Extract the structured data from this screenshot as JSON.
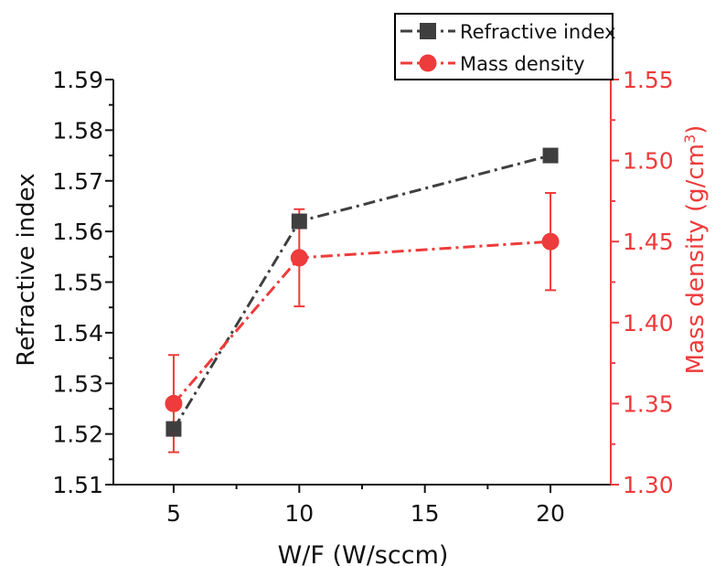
{
  "chart_data": {
    "type": "line",
    "xlabel": "W/F (W/sccm)",
    "ylabel_left": "Refractive index",
    "ylabel_right_prefix": "Mass density (g/cm",
    "ylabel_right_sup": "3",
    "ylabel_right_suffix": ")",
    "xlim": [
      2.6,
      22.4
    ],
    "xticks": [
      5,
      10,
      15,
      20
    ],
    "xtick_labels": [
      "5",
      "10",
      "15",
      "20"
    ],
    "ylim_left": [
      1.51,
      1.59
    ],
    "yticks_left": [
      1.51,
      1.52,
      1.53,
      1.54,
      1.55,
      1.56,
      1.57,
      1.58,
      1.59
    ],
    "ytick_labels_left": [
      "1.51",
      "1.52",
      "1.53",
      "1.54",
      "1.55",
      "1.56",
      "1.57",
      "1.58",
      "1.59"
    ],
    "ylim_right": [
      1.3,
      1.55
    ],
    "yticks_right": [
      1.3,
      1.35,
      1.4,
      1.45,
      1.5,
      1.55
    ],
    "ytick_labels_right": [
      "1.30",
      "1.35",
      "1.40",
      "1.45",
      "1.50",
      "1.55"
    ],
    "legend_position": "top-right",
    "series": [
      {
        "name": "Refractive index",
        "axis": "left",
        "color": "#3f3f3f",
        "marker": "square",
        "x": [
          5,
          10,
          20
        ],
        "y": [
          1.521,
          1.562,
          1.575
        ]
      },
      {
        "name": "Mass density",
        "axis": "right",
        "color": "#ee3b3b",
        "marker": "circle",
        "x": [
          5,
          10,
          20
        ],
        "y": [
          1.35,
          1.44,
          1.45
        ],
        "yerr": [
          0.03,
          0.03,
          0.03
        ]
      }
    ]
  }
}
